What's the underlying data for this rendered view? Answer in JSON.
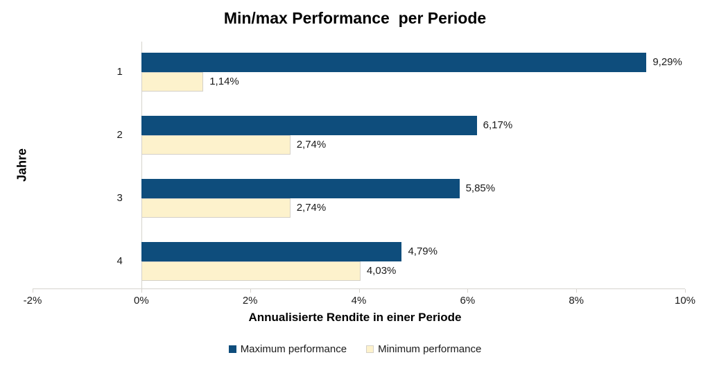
{
  "chart_data": {
    "type": "bar",
    "orientation": "horizontal",
    "title": "Min/max Performance  per Periode",
    "xlabel": "Annualisierte Rendite in einer Periode",
    "ylabel": "Jahre",
    "categories": [
      "1",
      "2",
      "3",
      "4"
    ],
    "series": [
      {
        "name": "Maximum performance",
        "color": "#0e4d7c",
        "border": "",
        "values": [
          9.29,
          6.17,
          5.85,
          4.79
        ],
        "labels": [
          "9,29%",
          "6,17%",
          "5,85%",
          "4,79%"
        ]
      },
      {
        "name": "Minimum performance",
        "color": "#fdf2cc",
        "border": "#d4d0c8",
        "values": [
          1.14,
          2.74,
          2.74,
          4.03
        ],
        "labels": [
          "1,14%",
          "2,74%",
          "2,74%",
          "4,03%"
        ]
      }
    ],
    "x_axis": {
      "min": -2,
      "max": 10,
      "step": 2,
      "tick_labels": [
        "-2%",
        "0%",
        "2%",
        "4%",
        "6%",
        "8%",
        "10%"
      ]
    },
    "legend_position": "bottom",
    "grid": false
  },
  "colors": {
    "axis_line": "#d6d3cd",
    "text": "#1a1a1a",
    "background": "#ffffff"
  }
}
